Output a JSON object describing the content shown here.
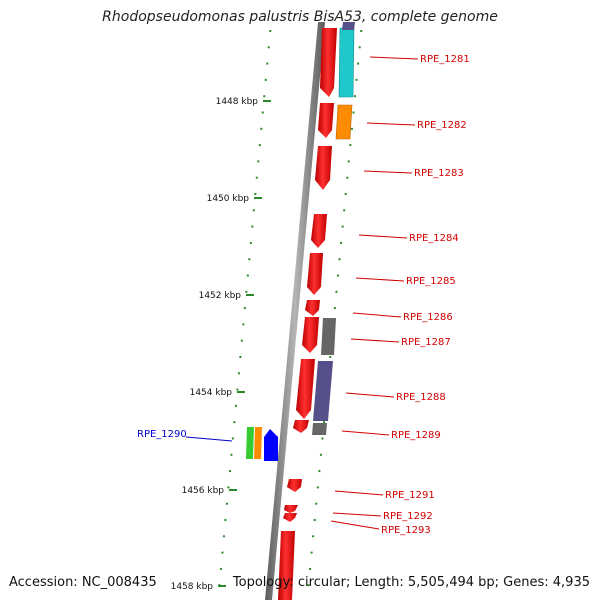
{
  "title": "Rhodopseudomonas palustris BisA53, complete genome",
  "footer": {
    "accession": "Accession: NC_008435",
    "summary": "Topology: circular; Length: 5,505,494 bp; Genes: 4,935"
  },
  "ticks": [
    "1448 kbp",
    "1450 kbp",
    "1452 kbp",
    "1454 kbp",
    "1456 kbp",
    "1458 kbp"
  ],
  "gene_labels": [
    {
      "id": "RPE_1281",
      "color": "#d40000"
    },
    {
      "id": "RPE_1282",
      "color": "#d40000"
    },
    {
      "id": "RPE_1283",
      "color": "#d40000"
    },
    {
      "id": "RPE_1284",
      "color": "#d40000"
    },
    {
      "id": "RPE_1285",
      "color": "#d40000"
    },
    {
      "id": "RPE_1286",
      "color": "#d40000"
    },
    {
      "id": "RPE_1287",
      "color": "#d40000"
    },
    {
      "id": "RPE_1288",
      "color": "#d40000"
    },
    {
      "id": "RPE_1289",
      "color": "#d40000"
    },
    {
      "id": "RPE_1290",
      "color": "#0000cc"
    },
    {
      "id": "RPE_1291",
      "color": "#d40000"
    },
    {
      "id": "RPE_1292",
      "color": "#d40000"
    },
    {
      "id": "RPE_1293",
      "color": "#d40000"
    }
  ],
  "colors": {
    "gene_red": "#ff0000",
    "cyan": "#20c8cc",
    "orange": "#ff8c00",
    "grey": "#666666",
    "purple": "#55508a",
    "green": "#33cc33",
    "blue": "#0000ff",
    "tick_green": "#2a8a2a",
    "backbone": "#8a8a8a"
  }
}
